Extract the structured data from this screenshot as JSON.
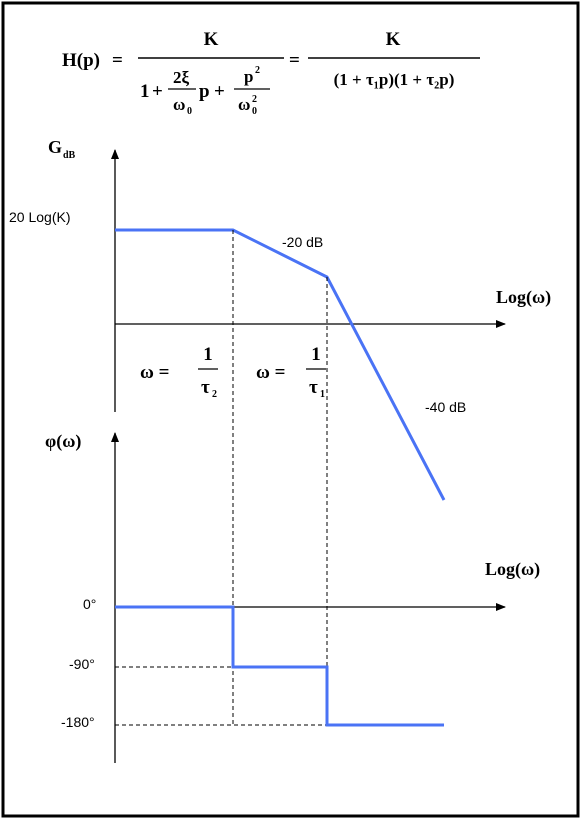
{
  "formula": {
    "lhs": "H(p)",
    "eq": "=",
    "num1": "K",
    "den1_one": "1",
    "den1_plus": "+",
    "den1_2xi": "2ξ",
    "den1_w0": "ω",
    "den1_w0_sub": "0",
    "den1_p": "p",
    "den1_p2": "p",
    "den1_p2_sup": "2",
    "den1_w02": "ω",
    "den1_w02_sub": "0",
    "den1_w02_sup": "2",
    "num2": "K",
    "den2": "(1 + τ₁p)(1 + τ₂p)"
  },
  "gain": {
    "ylabel_main": "G",
    "ylabel_sub": "dB",
    "level_label": "20 Log(K)",
    "slope1_label": "-20 dB",
    "slope2_label": "-40 dB",
    "xlabel": "Log(ω)"
  },
  "breakpoints": {
    "w2_lhs": "ω =",
    "w2_num": "1",
    "w2_den": "τ",
    "w2_den_sub": "2",
    "w1_lhs": "ω =",
    "w1_num": "1",
    "w1_den": "τ",
    "w1_den_sub": "1"
  },
  "phase": {
    "ylabel": "φ(ω)",
    "xlabel": "Log(ω)",
    "ticks": [
      "0°",
      "-90°",
      "-180°"
    ]
  },
  "colors": {
    "curve": "#4a73f5",
    "axis": "#000000",
    "frame": "#000000"
  }
}
